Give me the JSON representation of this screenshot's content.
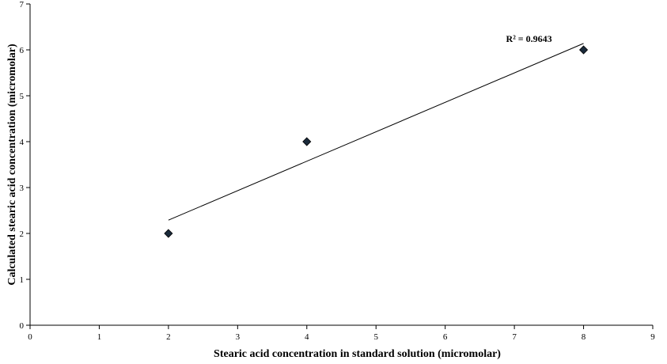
{
  "chart_data": {
    "type": "scatter",
    "title": "",
    "xlabel": "Stearic acid concentration in standard solution (micromolar)",
    "ylabel": "Calculated stearic acid concentration (micromolar)",
    "xlim": [
      0,
      9
    ],
    "ylim": [
      0,
      7
    ],
    "xticks": [
      "0",
      "1",
      "2",
      "3",
      "4",
      "5",
      "6",
      "7",
      "8",
      "9"
    ],
    "yticks": [
      "0",
      "1",
      "2",
      "3",
      "4",
      "5",
      "6",
      "7"
    ],
    "grid": false,
    "legend": "none",
    "marker": "diamond",
    "marker_color": "#1a2a3a",
    "points": [
      {
        "x": 2,
        "y": 2
      },
      {
        "x": 4,
        "y": 4
      },
      {
        "x": 8,
        "y": 6
      }
    ],
    "trendline": {
      "type": "linear",
      "x": [
        2,
        8
      ],
      "y": [
        2.29,
        6.14
      ]
    },
    "annotation": "R² = 0.9643"
  }
}
